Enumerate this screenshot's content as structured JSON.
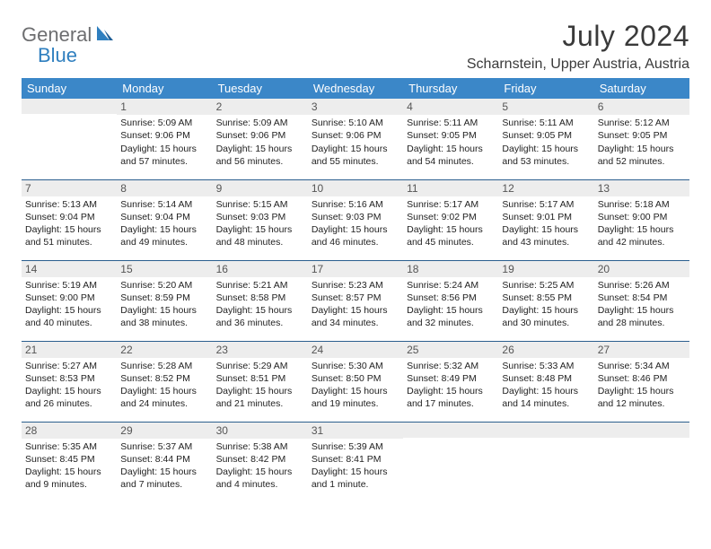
{
  "logo": {
    "general": "General",
    "blue": "Blue"
  },
  "title": "July 2024",
  "location": "Scharnstein, Upper Austria, Austria",
  "colors": {
    "header_bg": "#3b87c8",
    "header_text": "#ffffff",
    "row_border": "#2b5f8e",
    "daynum_bg": "#ededed",
    "logo_grey": "#6d6e70",
    "logo_blue": "#2f7fbf"
  },
  "weekdays": [
    "Sunday",
    "Monday",
    "Tuesday",
    "Wednesday",
    "Thursday",
    "Friday",
    "Saturday"
  ],
  "weeks": [
    [
      null,
      {
        "n": "1",
        "sr": "5:09 AM",
        "ss": "9:06 PM",
        "dl": "15 hours and 57 minutes."
      },
      {
        "n": "2",
        "sr": "5:09 AM",
        "ss": "9:06 PM",
        "dl": "15 hours and 56 minutes."
      },
      {
        "n": "3",
        "sr": "5:10 AM",
        "ss": "9:06 PM",
        "dl": "15 hours and 55 minutes."
      },
      {
        "n": "4",
        "sr": "5:11 AM",
        "ss": "9:05 PM",
        "dl": "15 hours and 54 minutes."
      },
      {
        "n": "5",
        "sr": "5:11 AM",
        "ss": "9:05 PM",
        "dl": "15 hours and 53 minutes."
      },
      {
        "n": "6",
        "sr": "5:12 AM",
        "ss": "9:05 PM",
        "dl": "15 hours and 52 minutes."
      }
    ],
    [
      {
        "n": "7",
        "sr": "5:13 AM",
        "ss": "9:04 PM",
        "dl": "15 hours and 51 minutes."
      },
      {
        "n": "8",
        "sr": "5:14 AM",
        "ss": "9:04 PM",
        "dl": "15 hours and 49 minutes."
      },
      {
        "n": "9",
        "sr": "5:15 AM",
        "ss": "9:03 PM",
        "dl": "15 hours and 48 minutes."
      },
      {
        "n": "10",
        "sr": "5:16 AM",
        "ss": "9:03 PM",
        "dl": "15 hours and 46 minutes."
      },
      {
        "n": "11",
        "sr": "5:17 AM",
        "ss": "9:02 PM",
        "dl": "15 hours and 45 minutes."
      },
      {
        "n": "12",
        "sr": "5:17 AM",
        "ss": "9:01 PM",
        "dl": "15 hours and 43 minutes."
      },
      {
        "n": "13",
        "sr": "5:18 AM",
        "ss": "9:00 PM",
        "dl": "15 hours and 42 minutes."
      }
    ],
    [
      {
        "n": "14",
        "sr": "5:19 AM",
        "ss": "9:00 PM",
        "dl": "15 hours and 40 minutes."
      },
      {
        "n": "15",
        "sr": "5:20 AM",
        "ss": "8:59 PM",
        "dl": "15 hours and 38 minutes."
      },
      {
        "n": "16",
        "sr": "5:21 AM",
        "ss": "8:58 PM",
        "dl": "15 hours and 36 minutes."
      },
      {
        "n": "17",
        "sr": "5:23 AM",
        "ss": "8:57 PM",
        "dl": "15 hours and 34 minutes."
      },
      {
        "n": "18",
        "sr": "5:24 AM",
        "ss": "8:56 PM",
        "dl": "15 hours and 32 minutes."
      },
      {
        "n": "19",
        "sr": "5:25 AM",
        "ss": "8:55 PM",
        "dl": "15 hours and 30 minutes."
      },
      {
        "n": "20",
        "sr": "5:26 AM",
        "ss": "8:54 PM",
        "dl": "15 hours and 28 minutes."
      }
    ],
    [
      {
        "n": "21",
        "sr": "5:27 AM",
        "ss": "8:53 PM",
        "dl": "15 hours and 26 minutes."
      },
      {
        "n": "22",
        "sr": "5:28 AM",
        "ss": "8:52 PM",
        "dl": "15 hours and 24 minutes."
      },
      {
        "n": "23",
        "sr": "5:29 AM",
        "ss": "8:51 PM",
        "dl": "15 hours and 21 minutes."
      },
      {
        "n": "24",
        "sr": "5:30 AM",
        "ss": "8:50 PM",
        "dl": "15 hours and 19 minutes."
      },
      {
        "n": "25",
        "sr": "5:32 AM",
        "ss": "8:49 PM",
        "dl": "15 hours and 17 minutes."
      },
      {
        "n": "26",
        "sr": "5:33 AM",
        "ss": "8:48 PM",
        "dl": "15 hours and 14 minutes."
      },
      {
        "n": "27",
        "sr": "5:34 AM",
        "ss": "8:46 PM",
        "dl": "15 hours and 12 minutes."
      }
    ],
    [
      {
        "n": "28",
        "sr": "5:35 AM",
        "ss": "8:45 PM",
        "dl": "15 hours and 9 minutes."
      },
      {
        "n": "29",
        "sr": "5:37 AM",
        "ss": "8:44 PM",
        "dl": "15 hours and 7 minutes."
      },
      {
        "n": "30",
        "sr": "5:38 AM",
        "ss": "8:42 PM",
        "dl": "15 hours and 4 minutes."
      },
      {
        "n": "31",
        "sr": "5:39 AM",
        "ss": "8:41 PM",
        "dl": "15 hours and 1 minute."
      },
      null,
      null,
      null
    ]
  ],
  "labels": {
    "sunrise": "Sunrise:",
    "sunset": "Sunset:",
    "daylight": "Daylight:"
  }
}
